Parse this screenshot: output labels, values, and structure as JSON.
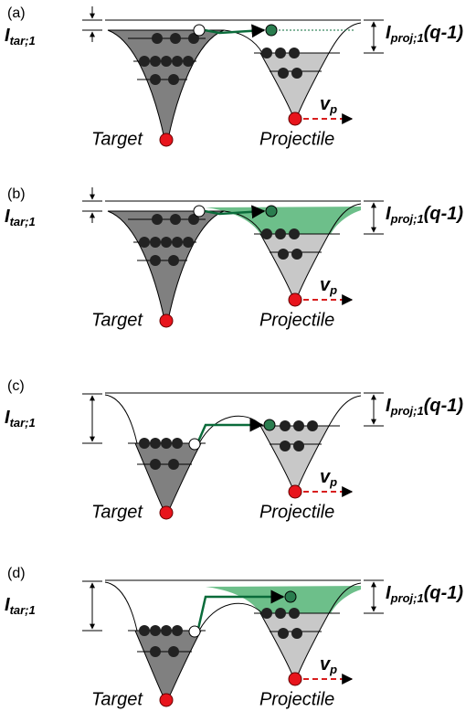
{
  "panels": [
    {
      "label": "(a)",
      "target_ionization": {
        "symbol": "I",
        "subscript": "tar;1"
      },
      "projectile_ionization": {
        "symbol": "I",
        "subscript": "proj;1",
        "suffix": "(q-1)"
      },
      "velocity": {
        "symbol": "v",
        "subscript": "p"
      },
      "target": "Target",
      "projectile": "Projectile"
    },
    {
      "label": "(b)",
      "target_ionization": {
        "symbol": "I",
        "subscript": "tar;1"
      },
      "projectile_ionization": {
        "symbol": "I",
        "subscript": "proj;1",
        "suffix": "(q-1)"
      },
      "velocity": {
        "symbol": "v",
        "subscript": "p"
      },
      "target": "Target",
      "projectile": "Projectile"
    },
    {
      "label": "(c)",
      "target_ionization": {
        "symbol": "I",
        "subscript": "tar;1"
      },
      "projectile_ionization": {
        "symbol": "I",
        "subscript": "proj;1",
        "suffix": "(q-1)"
      },
      "velocity": {
        "symbol": "v",
        "subscript": "p"
      },
      "target": "Target",
      "projectile": "Projectile"
    },
    {
      "label": "(d)",
      "target_ionization": {
        "symbol": "I",
        "subscript": "tar;1"
      },
      "projectile_ionization": {
        "symbol": "I",
        "subscript": "proj;1",
        "suffix": "(q-1)"
      },
      "velocity": {
        "symbol": "v",
        "subscript": "p"
      },
      "target": "Target",
      "projectile": "Projectile"
    }
  ]
}
